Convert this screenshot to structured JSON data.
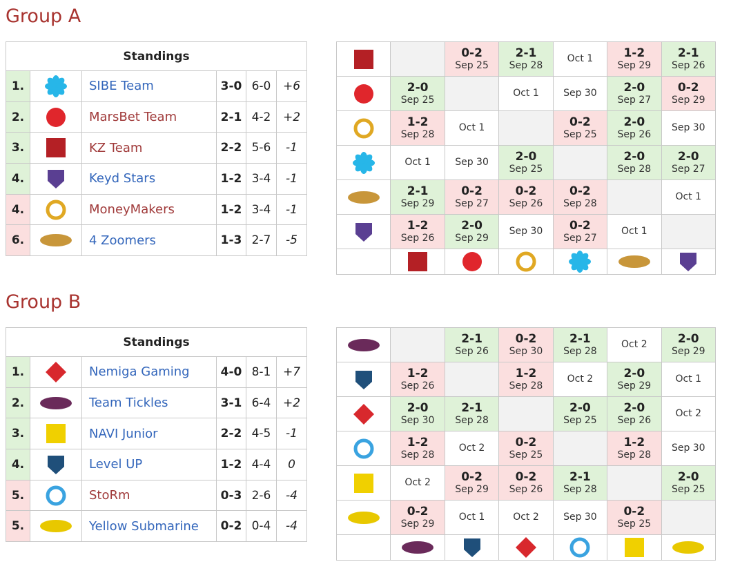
{
  "groups": [
    {
      "title": "Group A",
      "standings": {
        "header": "Standings",
        "rows": [
          {
            "rank": "1.",
            "team": "SIBE Team",
            "record": "3-0",
            "maps": "6-0",
            "diff": "+6",
            "name_color": "#3366bb"
          },
          {
            "rank": "2.",
            "team": "MarsBet Team",
            "record": "2-1",
            "maps": "4-2",
            "diff": "+2",
            "name_color": "#a03a3a"
          },
          {
            "rank": "3.",
            "team": "KZ Team",
            "record": "2-2",
            "maps": "5-6",
            "diff": "-1",
            "name_color": "#a03a3a"
          },
          {
            "rank": "4.",
            "team": "Keyd Stars",
            "record": "1-2",
            "maps": "3-4",
            "diff": "-1",
            "name_color": "#3366bb"
          },
          {
            "rank": "4.",
            "team": "MoneyMakers",
            "record": "1-2",
            "maps": "3-4",
            "diff": "-1",
            "name_color": "#a03a3a"
          },
          {
            "rank": "6.",
            "team": "4 Zoomers",
            "record": "1-3",
            "maps": "2-7",
            "diff": "-5",
            "name_color": "#3366bb"
          }
        ]
      },
      "matrix": [
        [
          null,
          {
            "score": "0-2",
            "date": "Sep 25"
          },
          {
            "score": "2-1",
            "date": "Sep 28"
          },
          {
            "date": "Oct 1"
          },
          {
            "score": "1-2",
            "date": "Sep 29"
          },
          {
            "score": "2-1",
            "date": "Sep 26"
          }
        ],
        [
          {
            "score": "2-0",
            "date": "Sep 25"
          },
          null,
          {
            "date": "Oct 1"
          },
          {
            "date": "Sep 30"
          },
          {
            "score": "2-0",
            "date": "Sep 27"
          },
          {
            "score": "0-2",
            "date": "Sep 29"
          }
        ],
        [
          {
            "score": "1-2",
            "date": "Sep 28"
          },
          {
            "date": "Oct 1"
          },
          null,
          {
            "score": "0-2",
            "date": "Sep 25"
          },
          {
            "score": "2-0",
            "date": "Sep 26"
          },
          {
            "date": "Sep 30"
          }
        ],
        [
          {
            "date": "Oct 1"
          },
          {
            "date": "Sep 30"
          },
          {
            "score": "2-0",
            "date": "Sep 25"
          },
          null,
          {
            "score": "2-0",
            "date": "Sep 28"
          },
          {
            "score": "2-0",
            "date": "Sep 27"
          }
        ],
        [
          {
            "score": "2-1",
            "date": "Sep 29"
          },
          {
            "score": "0-2",
            "date": "Sep 27"
          },
          {
            "score": "0-2",
            "date": "Sep 26"
          },
          {
            "score": "0-2",
            "date": "Sep 28"
          },
          null,
          {
            "date": "Oct 1"
          }
        ],
        [
          {
            "score": "1-2",
            "date": "Sep 26"
          },
          {
            "score": "2-0",
            "date": "Sep 29"
          },
          {
            "date": "Sep 30"
          },
          {
            "score": "0-2",
            "date": "Sep 27"
          },
          {
            "date": "Oct 1"
          },
          null
        ]
      ]
    },
    {
      "title": "Group B",
      "standings": {
        "header": "Standings",
        "rows": [
          {
            "rank": "1.",
            "team": "Nemiga Gaming",
            "record": "4-0",
            "maps": "8-1",
            "diff": "+7",
            "name_color": "#3366bb"
          },
          {
            "rank": "2.",
            "team": "Team Tickles",
            "record": "3-1",
            "maps": "6-4",
            "diff": "+2",
            "name_color": "#3366bb"
          },
          {
            "rank": "3.",
            "team": "NAVI Junior",
            "record": "2-2",
            "maps": "4-5",
            "diff": "-1",
            "name_color": "#3366bb"
          },
          {
            "rank": "4.",
            "team": "Level UP",
            "record": "1-2",
            "maps": "4-4",
            "diff": "0",
            "name_color": "#3366bb"
          },
          {
            "rank": "5.",
            "team": "StoRm",
            "record": "0-3",
            "maps": "2-6",
            "diff": "-4",
            "name_color": "#a03a3a"
          },
          {
            "rank": "5.",
            "team": "Yellow Submarine",
            "record": "0-2",
            "maps": "0-4",
            "diff": "-4",
            "name_color": "#3366bb"
          }
        ]
      },
      "matrix": [
        [
          null,
          {
            "score": "2-1",
            "date": "Sep 26"
          },
          {
            "score": "0-2",
            "date": "Sep 30"
          },
          {
            "score": "2-1",
            "date": "Sep 28"
          },
          {
            "date": "Oct 2"
          },
          {
            "score": "2-0",
            "date": "Sep 29"
          }
        ],
        [
          {
            "score": "1-2",
            "date": "Sep 26"
          },
          null,
          {
            "score": "1-2",
            "date": "Sep 28"
          },
          {
            "date": "Oct 2"
          },
          {
            "score": "2-0",
            "date": "Sep 29"
          },
          {
            "date": "Oct 1"
          }
        ],
        [
          {
            "score": "2-0",
            "date": "Sep 30"
          },
          {
            "score": "2-1",
            "date": "Sep 28"
          },
          null,
          {
            "score": "2-0",
            "date": "Sep 25"
          },
          {
            "score": "2-0",
            "date": "Sep 26"
          },
          {
            "date": "Oct 2"
          }
        ],
        [
          {
            "score": "1-2",
            "date": "Sep 28"
          },
          {
            "date": "Oct 2"
          },
          {
            "score": "0-2",
            "date": "Sep 25"
          },
          null,
          {
            "score": "1-2",
            "date": "Sep 28"
          },
          {
            "date": "Sep 30"
          }
        ],
        [
          {
            "date": "Oct 2"
          },
          {
            "score": "0-2",
            "date": "Sep 29"
          },
          {
            "score": "0-2",
            "date": "Sep 26"
          },
          {
            "score": "2-1",
            "date": "Sep 28"
          },
          null,
          {
            "score": "2-0",
            "date": "Sep 25"
          }
        ],
        [
          {
            "score": "0-2",
            "date": "Sep 29"
          },
          {
            "date": "Oct 1"
          },
          {
            "date": "Oct 2"
          },
          {
            "date": "Sep 30"
          },
          {
            "score": "0-2",
            "date": "Sep 25"
          },
          null
        ]
      ]
    }
  ]
}
